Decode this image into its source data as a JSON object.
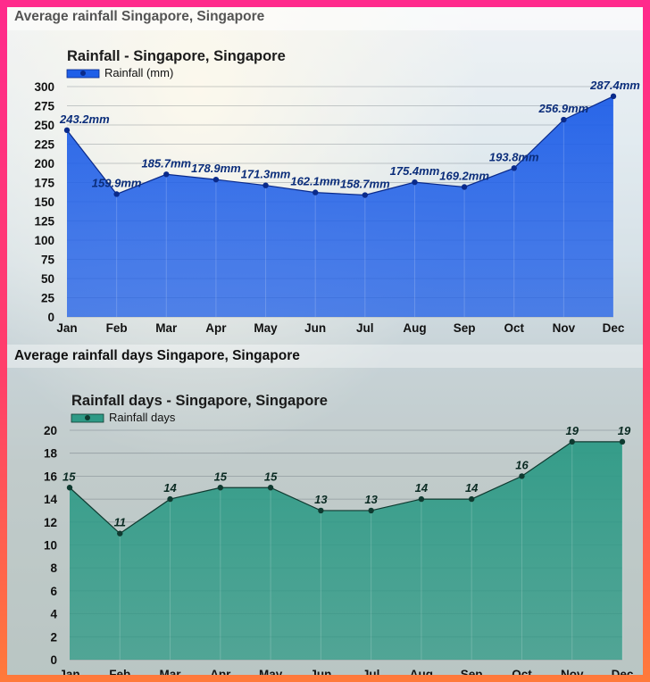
{
  "sections": {
    "rainfall_heading": "Average rainfall Singapore, Singapore",
    "days_heading": "Average rainfall days Singapore, Singapore"
  },
  "colors": {
    "frame_top": "#ff2a8c",
    "frame_bottom": "#ff7a3a",
    "rainfall_fill": "#1f5fe8",
    "rainfall_line": "#0a2a8a",
    "days_fill": "#2e9a86",
    "days_line": "#0f3a30"
  },
  "chart_data": [
    {
      "type": "area",
      "title": "Rainfall - Singapore, Singapore",
      "legend": [
        "Rainfall (mm)"
      ],
      "legend_position": "top-left",
      "categories": [
        "Jan",
        "Feb",
        "Mar",
        "Apr",
        "May",
        "Jun",
        "Jul",
        "Aug",
        "Sep",
        "Oct",
        "Nov",
        "Dec"
      ],
      "series": [
        {
          "name": "Rainfall (mm)",
          "values": [
            243.2,
            159.9,
            185.7,
            178.9,
            171.3,
            162.1,
            158.7,
            175.4,
            169.2,
            193.8,
            256.9,
            287.4
          ]
        }
      ],
      "data_labels": [
        "243.2mm",
        "159.9mm",
        "185.7mm",
        "178.9mm",
        "171.3mm",
        "162.1mm",
        "158.7mm",
        "175.4mm",
        "169.2mm",
        "193.8mm",
        "256.9mm",
        "287.4mm"
      ],
      "ylim": [
        0,
        300
      ],
      "yticks": [
        0,
        25,
        50,
        75,
        100,
        125,
        150,
        175,
        200,
        225,
        250,
        275,
        300
      ],
      "grid": true
    },
    {
      "type": "area",
      "title": "Rainfall days - Singapore, Singapore",
      "legend": [
        "Rainfall days"
      ],
      "legend_position": "top-left",
      "categories": [
        "Jan",
        "Feb",
        "Mar",
        "Apr",
        "May",
        "Jun",
        "Jul",
        "Aug",
        "Sep",
        "Oct",
        "Nov",
        "Dec"
      ],
      "series": [
        {
          "name": "Rainfall days",
          "values": [
            15,
            11,
            14,
            15,
            15,
            13,
            13,
            14,
            14,
            16,
            19,
            19
          ]
        }
      ],
      "data_labels": [
        "15",
        "11",
        "14",
        "15",
        "15",
        "13",
        "13",
        "14",
        "14",
        "16",
        "19",
        "19"
      ],
      "ylim": [
        0,
        20
      ],
      "yticks": [
        0,
        2,
        4,
        6,
        8,
        10,
        12,
        14,
        16,
        18,
        20
      ],
      "grid": true
    }
  ]
}
